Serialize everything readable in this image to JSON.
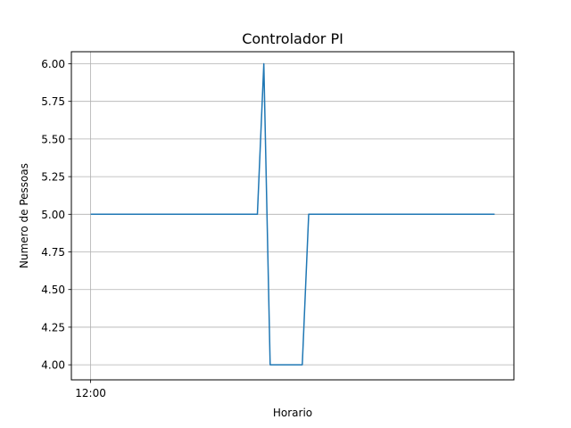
{
  "chart_data": {
    "type": "line",
    "title": "Controlador PI",
    "xlabel": "Horario",
    "ylabel": "Numero de Pessoas",
    "x_tick_labels": [
      "12:00"
    ],
    "ylim": [
      3.9,
      6.08
    ],
    "yticks": [
      4.0,
      4.25,
      4.5,
      4.75,
      5.0,
      5.25,
      5.5,
      5.75,
      6.0
    ],
    "grid": true,
    "colors": {
      "series": "#1f77b4",
      "grid": "#b0b0b0"
    },
    "series": [
      {
        "points": [
          [
            0,
            5.0
          ],
          [
            26,
            5.0
          ],
          [
            27,
            6.0
          ],
          [
            28,
            4.0
          ],
          [
            33,
            4.0
          ],
          [
            34,
            5.0
          ],
          [
            63,
            5.0
          ]
        ]
      }
    ],
    "x_range": [
      -3,
      66
    ]
  }
}
